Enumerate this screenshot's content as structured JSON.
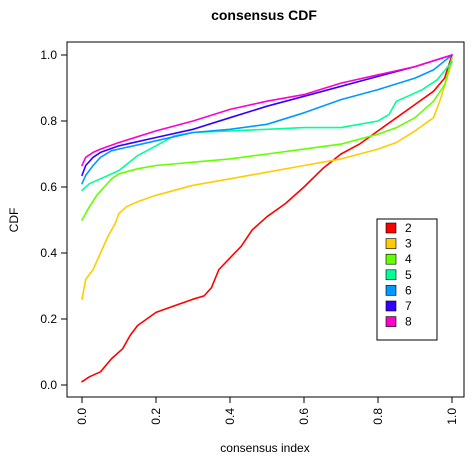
{
  "chart_data": {
    "type": "line",
    "title": "consensus CDF",
    "xlabel": "consensus index",
    "ylabel": "CDF",
    "xlim": [
      0,
      1
    ],
    "ylim": [
      0,
      1
    ],
    "xticks": [
      "0.0",
      "0.2",
      "0.4",
      "0.6",
      "0.8",
      "1.0"
    ],
    "yticks": [
      "0.0",
      "0.2",
      "0.4",
      "0.6",
      "0.8",
      "1.0"
    ],
    "grid": false,
    "legend_position": "right",
    "series": [
      {
        "name": "2",
        "color": "#ff0000",
        "x": [
          0.0,
          0.02,
          0.05,
          0.08,
          0.11,
          0.13,
          0.15,
          0.2,
          0.25,
          0.3,
          0.33,
          0.35,
          0.37,
          0.4,
          0.43,
          0.46,
          0.5,
          0.55,
          0.6,
          0.65,
          0.7,
          0.75,
          0.8,
          0.85,
          0.9,
          0.95,
          0.98,
          1.0
        ],
        "y": [
          0.01,
          0.025,
          0.04,
          0.08,
          0.11,
          0.15,
          0.18,
          0.22,
          0.24,
          0.26,
          0.27,
          0.295,
          0.35,
          0.385,
          0.42,
          0.47,
          0.51,
          0.55,
          0.6,
          0.655,
          0.7,
          0.73,
          0.77,
          0.81,
          0.85,
          0.89,
          0.93,
          1.0
        ]
      },
      {
        "name": "3",
        "color": "#ffcc00",
        "x": [
          0.0,
          0.01,
          0.03,
          0.05,
          0.07,
          0.09,
          0.1,
          0.12,
          0.15,
          0.2,
          0.25,
          0.3,
          0.35,
          0.4,
          0.5,
          0.6,
          0.7,
          0.8,
          0.85,
          0.9,
          0.95,
          0.97,
          1.0
        ],
        "y": [
          0.26,
          0.32,
          0.35,
          0.4,
          0.45,
          0.49,
          0.52,
          0.54,
          0.555,
          0.575,
          0.59,
          0.605,
          0.615,
          0.625,
          0.645,
          0.665,
          0.685,
          0.715,
          0.735,
          0.77,
          0.81,
          0.87,
          0.98
        ]
      },
      {
        "name": "4",
        "color": "#66ff00",
        "x": [
          0.0,
          0.02,
          0.04,
          0.06,
          0.08,
          0.1,
          0.15,
          0.2,
          0.3,
          0.4,
          0.5,
          0.6,
          0.7,
          0.8,
          0.85,
          0.9,
          0.95,
          0.98,
          1.0
        ],
        "y": [
          0.5,
          0.54,
          0.575,
          0.6,
          0.625,
          0.64,
          0.655,
          0.665,
          0.675,
          0.685,
          0.7,
          0.715,
          0.73,
          0.76,
          0.78,
          0.81,
          0.86,
          0.91,
          0.99
        ]
      },
      {
        "name": "5",
        "color": "#00ff99",
        "x": [
          0.0,
          0.02,
          0.05,
          0.1,
          0.15,
          0.2,
          0.25,
          0.3,
          0.4,
          0.5,
          0.6,
          0.7,
          0.8,
          0.83,
          0.85,
          0.88,
          0.92,
          0.96,
          1.0
        ],
        "y": [
          0.59,
          0.61,
          0.625,
          0.65,
          0.695,
          0.725,
          0.755,
          0.765,
          0.77,
          0.775,
          0.78,
          0.78,
          0.8,
          0.82,
          0.86,
          0.875,
          0.895,
          0.925,
          0.98
        ]
      },
      {
        "name": "6",
        "color": "#0099ff",
        "x": [
          0.0,
          0.01,
          0.03,
          0.05,
          0.08,
          0.12,
          0.2,
          0.3,
          0.4,
          0.5,
          0.6,
          0.7,
          0.8,
          0.9,
          0.95,
          1.0
        ],
        "y": [
          0.61,
          0.635,
          0.665,
          0.69,
          0.71,
          0.72,
          0.74,
          0.765,
          0.775,
          0.79,
          0.825,
          0.865,
          0.895,
          0.93,
          0.955,
          1.0
        ]
      },
      {
        "name": "7",
        "color": "#3300ff",
        "x": [
          0.0,
          0.01,
          0.03,
          0.05,
          0.1,
          0.2,
          0.3,
          0.4,
          0.5,
          0.6,
          0.7,
          0.8,
          0.9,
          1.0
        ],
        "y": [
          0.635,
          0.665,
          0.69,
          0.705,
          0.725,
          0.75,
          0.775,
          0.81,
          0.845,
          0.875,
          0.905,
          0.935,
          0.965,
          1.0
        ]
      },
      {
        "name": "8",
        "color": "#ff00cc",
        "x": [
          0.0,
          0.01,
          0.03,
          0.05,
          0.1,
          0.2,
          0.3,
          0.4,
          0.5,
          0.6,
          0.7,
          0.8,
          0.9,
          1.0
        ],
        "y": [
          0.665,
          0.69,
          0.705,
          0.715,
          0.735,
          0.77,
          0.8,
          0.835,
          0.86,
          0.88,
          0.915,
          0.94,
          0.965,
          1.0
        ]
      }
    ]
  }
}
